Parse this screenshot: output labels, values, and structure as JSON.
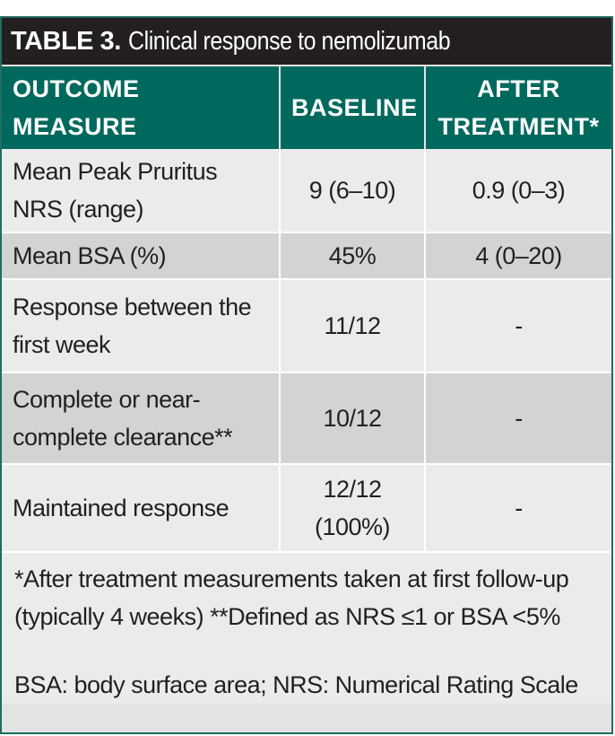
{
  "title": {
    "prefix": "TABLE 3.",
    "text": "Clinical response to nemolizumab"
  },
  "headers": {
    "outcome": "OUTCOME MEASURE",
    "baseline": "BASELINE",
    "after_line1": "AFTER",
    "after_line2": "TREATMENT*"
  },
  "rows": [
    {
      "measure": "Mean Peak Pruritus NRS (range)",
      "baseline": "9 (6–10)",
      "after": "0.9 (0–3)"
    },
    {
      "measure": "Mean BSA (%)",
      "baseline": "45%",
      "after": "4 (0–20)"
    },
    {
      "measure": "Response between the first week",
      "baseline": "11/12",
      "after": "-"
    },
    {
      "measure": "Complete or near-complete clearance**",
      "baseline": "10/12",
      "after": "-"
    },
    {
      "measure": "Maintained response",
      "baseline": "12/12 (100%)",
      "after": "-"
    }
  ],
  "footnotes": {
    "note1": "*After treatment measurements taken at first follow-up (typically 4 weeks) **Defined as NRS ≤1 or BSA <5%",
    "note2": "BSA: body surface area; NRS: Numerical Rating Scale"
  },
  "colors": {
    "header_teal": "#00695e",
    "title_black": "#231f20",
    "row_light": "#ebebec",
    "row_dark": "#d3d3d3"
  }
}
